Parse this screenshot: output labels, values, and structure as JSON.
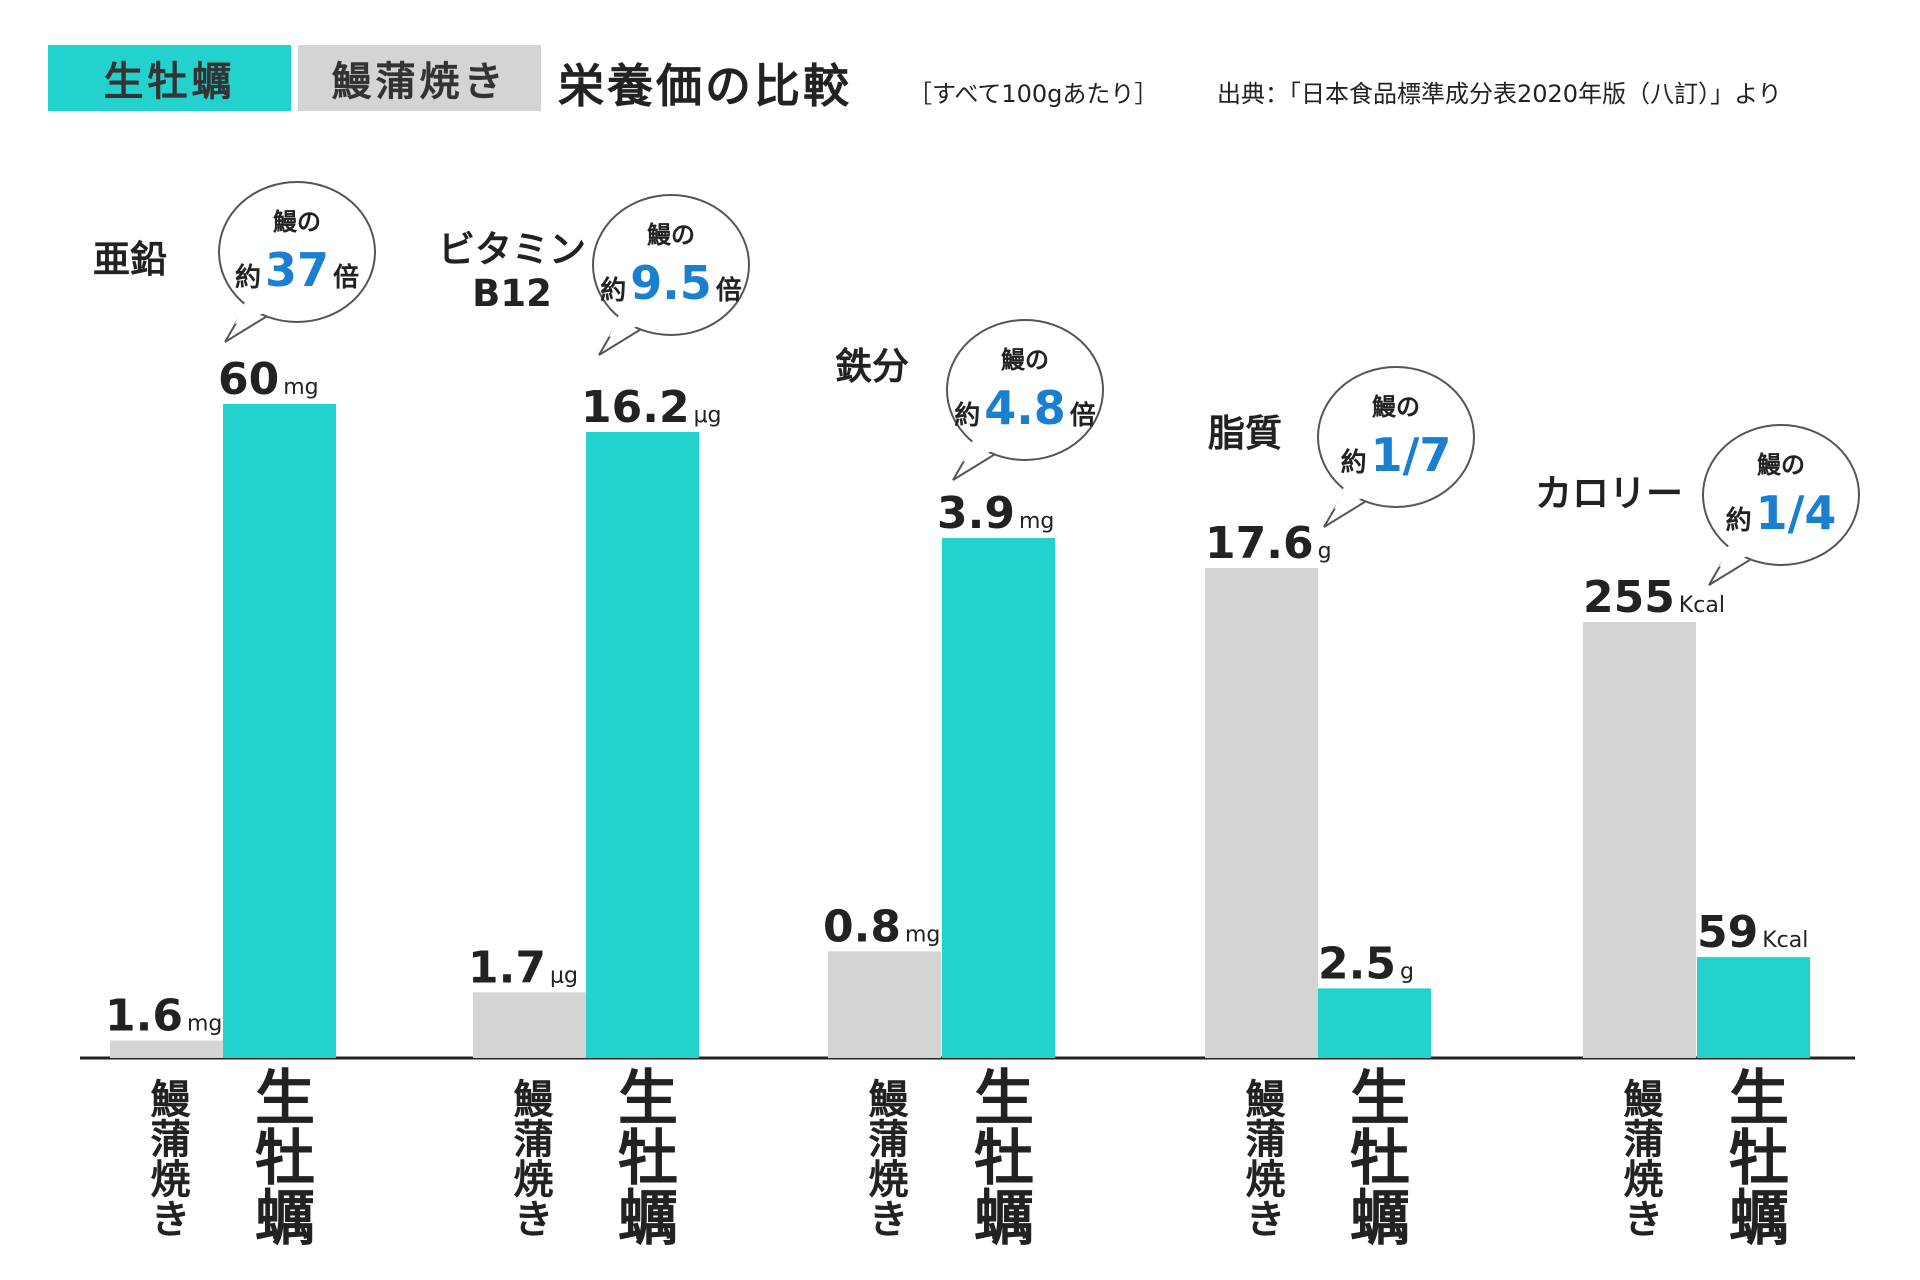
{
  "legend": {
    "oyster": "生牡蠣",
    "eel": "鰻蒲焼き"
  },
  "title": "栄養価の比較",
  "note": "［すべて100gあたり］",
  "source": "出典：「日本食品標準成分表2020年版（八訂）」より",
  "colors": {
    "oyster": "#23d2cc",
    "eel": "#d4d4d2",
    "accent": "#1a7fcf",
    "axis": "#222222"
  },
  "bubble_line1": "鰻の",
  "bubble_prefix": "約",
  "chart_data": {
    "type": "bar",
    "title": "栄養価の比較",
    "categories": [
      "亜鉛",
      "ビタミンB12",
      "鉄分",
      "脂質",
      "カロリー"
    ],
    "series": [
      {
        "name": "鰻蒲焼き",
        "values": [
          1.6,
          1.7,
          0.8,
          17.6,
          255
        ]
      },
      {
        "name": "生牡蠣",
        "values": [
          60,
          16.2,
          3.9,
          2.5,
          59
        ]
      }
    ],
    "panels": [
      {
        "title": [
          "亜鉛"
        ],
        "unit": "mg",
        "eel": 1.6,
        "eel_label": "1.6",
        "oyster": 60,
        "oyster_label": "60",
        "ratio": "37",
        "ratio_suffix": "倍",
        "eel_cat": "鰻蒲焼き",
        "oyster_cat": "生牡蠣"
      },
      {
        "title": [
          "ビタミン",
          "B12"
        ],
        "unit": "μg",
        "eel": 1.7,
        "eel_label": "1.7",
        "oyster": 16.2,
        "oyster_label": "16.2",
        "ratio": "9.5",
        "ratio_suffix": "倍",
        "eel_cat": "鰻蒲焼き",
        "oyster_cat": "生牡蠣"
      },
      {
        "title": [
          "鉄分"
        ],
        "unit": "mg",
        "eel": 0.8,
        "eel_label": "0.8",
        "oyster": 3.9,
        "oyster_label": "3.9",
        "ratio": "4.8",
        "ratio_suffix": "倍",
        "eel_cat": "鰻蒲焼き",
        "oyster_cat": "生牡蠣"
      },
      {
        "title": [
          "脂質"
        ],
        "unit": "g",
        "eel": 17.6,
        "eel_label": "17.6",
        "oyster": 2.5,
        "oyster_label": "2.5",
        "ratio": "1/7",
        "ratio_suffix": "",
        "eel_cat": "鰻蒲焼き",
        "oyster_cat": "生牡蠣"
      },
      {
        "title": [
          "カロリー"
        ],
        "unit": "Kcal",
        "eel": 255,
        "eel_label": "255",
        "oyster": 59,
        "oyster_label": "59",
        "ratio": "1/4",
        "ratio_suffix": "",
        "eel_cat": "鰻蒲焼き",
        "oyster_cat": "生牡蠣"
      }
    ]
  }
}
